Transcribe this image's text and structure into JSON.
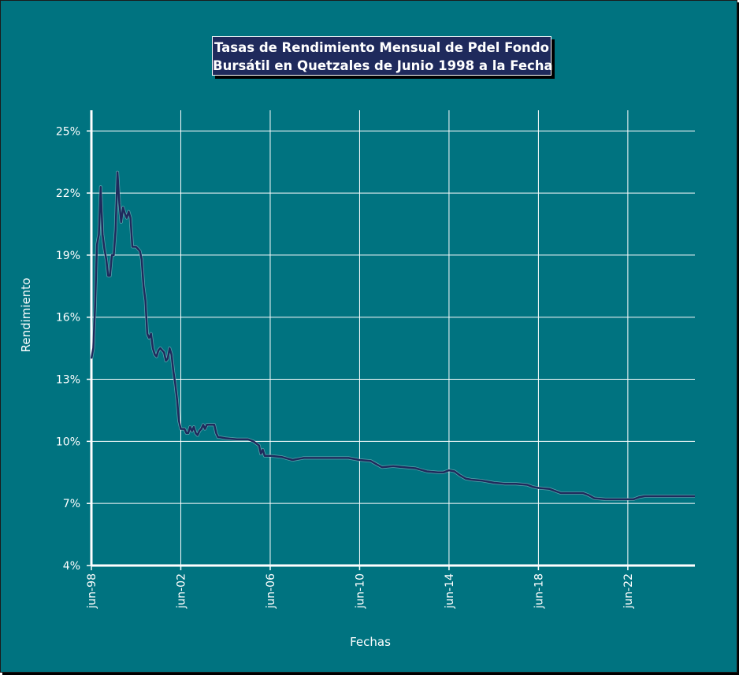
{
  "chart_data": {
    "type": "line",
    "title": [
      "Tasas de Rendimiento Mensual de Pdel Fondo",
      "Bursátil en Quetzales de Junio 1998 a la Fecha"
    ],
    "xlabel": "Fechas",
    "ylabel": "Rendimiento",
    "xlim": [
      "1998-06",
      "2025-06"
    ],
    "ylim": [
      4,
      26
    ],
    "x_ticks": [
      "jun-98",
      "jun-02",
      "jun-06",
      "jun-10",
      "jun-14",
      "jun-18",
      "jun-22"
    ],
    "y_ticks": [
      "25%",
      "22%",
      "19%",
      "16%",
      "13%",
      "10%",
      "7%",
      "4%"
    ],
    "grid": true,
    "colors": {
      "background": "#007380",
      "line": "#1f2a5c",
      "grid": "#ffffff"
    },
    "series": [
      {
        "points": [
          [
            "1998-06",
            14.0
          ],
          [
            "1998-07",
            14.5
          ],
          [
            "1998-08",
            16.5
          ],
          [
            "1998-09",
            19.5
          ],
          [
            "1998-10",
            20.0
          ],
          [
            "1998-11",
            22.3
          ],
          [
            "1998-12",
            20.0
          ],
          [
            "1999-01",
            19.3
          ],
          [
            "1999-02",
            18.8
          ],
          [
            "1999-03",
            18.0
          ],
          [
            "1999-04",
            18.0
          ],
          [
            "1999-05",
            19.0
          ],
          [
            "1999-06",
            19.0
          ],
          [
            "1999-07",
            20.2
          ],
          [
            "1999-08",
            23.0
          ],
          [
            "1999-09",
            21.5
          ],
          [
            "1999-10",
            20.6
          ],
          [
            "1999-11",
            21.3
          ],
          [
            "1999-12",
            21.0
          ],
          [
            "2000-01",
            20.8
          ],
          [
            "2000-02",
            21.1
          ],
          [
            "2000-03",
            20.8
          ],
          [
            "2000-04",
            19.4
          ],
          [
            "2000-05",
            19.4
          ],
          [
            "2000-06",
            19.4
          ],
          [
            "2000-07",
            19.3
          ],
          [
            "2000-08",
            19.2
          ],
          [
            "2000-09",
            18.8
          ],
          [
            "2000-10",
            17.5
          ],
          [
            "2000-11",
            16.8
          ],
          [
            "2000-12",
            15.2
          ],
          [
            "2001-01",
            15.0
          ],
          [
            "2001-02",
            15.2
          ],
          [
            "2001-03",
            14.5
          ],
          [
            "2001-04",
            14.2
          ],
          [
            "2001-05",
            14.1
          ],
          [
            "2001-06",
            14.4
          ],
          [
            "2001-07",
            14.5
          ],
          [
            "2001-08",
            14.4
          ],
          [
            "2001-09",
            14.3
          ],
          [
            "2001-10",
            13.9
          ],
          [
            "2001-11",
            14.0
          ],
          [
            "2001-12",
            14.5
          ],
          [
            "2002-01",
            14.2
          ],
          [
            "2002-02",
            13.4
          ],
          [
            "2002-03",
            12.8
          ],
          [
            "2002-04",
            12.0
          ],
          [
            "2002-05",
            11.0
          ],
          [
            "2002-06",
            10.6
          ],
          [
            "2002-07",
            10.6
          ],
          [
            "2002-08",
            10.6
          ],
          [
            "2002-09",
            10.4
          ],
          [
            "2002-10",
            10.4
          ],
          [
            "2002-11",
            10.7
          ],
          [
            "2002-12",
            10.5
          ],
          [
            "2003-01",
            10.7
          ],
          [
            "2003-02",
            10.4
          ],
          [
            "2003-03",
            10.3
          ],
          [
            "2003-04",
            10.5
          ],
          [
            "2003-05",
            10.6
          ],
          [
            "2003-06",
            10.8
          ],
          [
            "2003-07",
            10.6
          ],
          [
            "2003-08",
            10.8
          ],
          [
            "2003-09",
            10.8
          ],
          [
            "2003-10",
            10.8
          ],
          [
            "2003-11",
            10.8
          ],
          [
            "2003-12",
            10.8
          ],
          [
            "2004-01",
            10.4
          ],
          [
            "2004-02",
            10.2
          ],
          [
            "2004-03",
            10.2
          ],
          [
            "2004-06",
            10.15
          ],
          [
            "2004-12",
            10.1
          ],
          [
            "2005-06",
            10.1
          ],
          [
            "2005-09",
            10.0
          ],
          [
            "2005-12",
            9.8
          ],
          [
            "2006-01",
            9.4
          ],
          [
            "2006-02",
            9.6
          ],
          [
            "2006-03",
            9.3
          ],
          [
            "2006-06",
            9.3
          ],
          [
            "2006-12",
            9.25
          ],
          [
            "2007-06",
            9.1
          ],
          [
            "2007-12",
            9.2
          ],
          [
            "2008-06",
            9.2
          ],
          [
            "2008-12",
            9.2
          ],
          [
            "2009-06",
            9.2
          ],
          [
            "2009-12",
            9.2
          ],
          [
            "2010-06",
            9.1
          ],
          [
            "2010-12",
            9.05
          ],
          [
            "2011-03",
            8.9
          ],
          [
            "2011-06",
            8.75
          ],
          [
            "2011-12",
            8.8
          ],
          [
            "2012-06",
            8.75
          ],
          [
            "2012-12",
            8.7
          ],
          [
            "2013-06",
            8.55
          ],
          [
            "2013-12",
            8.5
          ],
          [
            "2014-03",
            8.5
          ],
          [
            "2014-06",
            8.6
          ],
          [
            "2014-09",
            8.55
          ],
          [
            "2014-12",
            8.35
          ],
          [
            "2015-03",
            8.2
          ],
          [
            "2015-06",
            8.15
          ],
          [
            "2015-12",
            8.1
          ],
          [
            "2016-06",
            8.0
          ],
          [
            "2016-12",
            7.95
          ],
          [
            "2017-06",
            7.95
          ],
          [
            "2017-12",
            7.9
          ],
          [
            "2018-03",
            7.8
          ],
          [
            "2018-06",
            7.75
          ],
          [
            "2018-12",
            7.7
          ],
          [
            "2019-06",
            7.5
          ],
          [
            "2019-12",
            7.5
          ],
          [
            "2020-06",
            7.5
          ],
          [
            "2020-09",
            7.4
          ],
          [
            "2020-12",
            7.25
          ],
          [
            "2021-06",
            7.2
          ],
          [
            "2021-12",
            7.2
          ],
          [
            "2022-06",
            7.2
          ],
          [
            "2022-09",
            7.2
          ],
          [
            "2022-12",
            7.3
          ],
          [
            "2023-03",
            7.35
          ],
          [
            "2023-06",
            7.35
          ],
          [
            "2023-12",
            7.35
          ],
          [
            "2024-06",
            7.35
          ],
          [
            "2024-12",
            7.35
          ],
          [
            "2025-06",
            7.35
          ]
        ]
      }
    ]
  }
}
